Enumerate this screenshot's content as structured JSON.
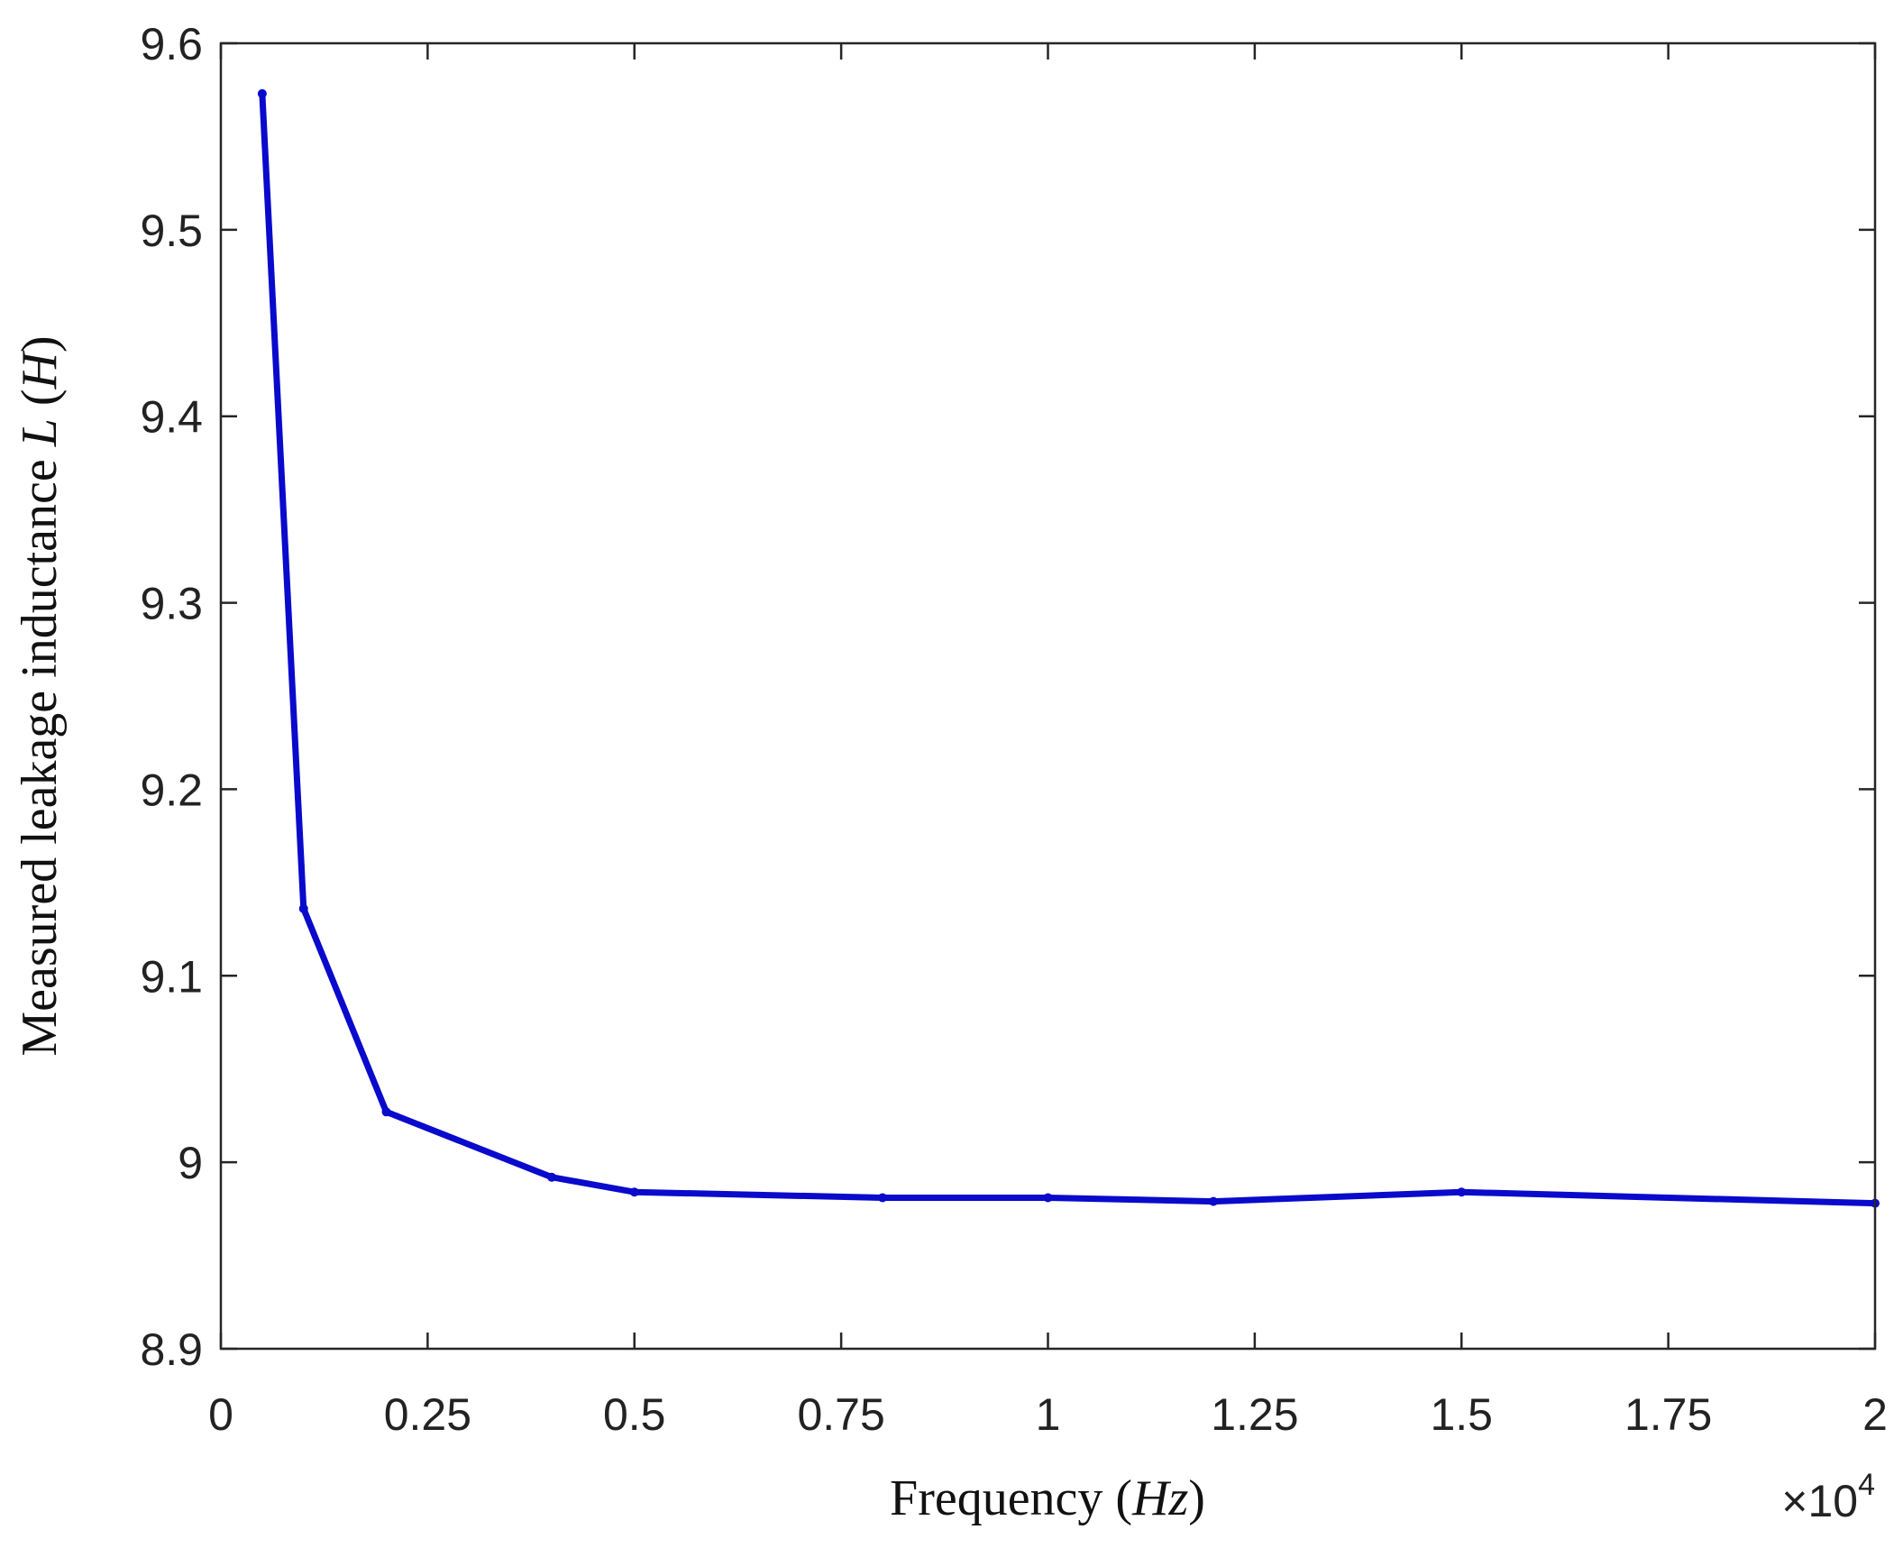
{
  "chart_data": {
    "type": "line",
    "xlabel": {
      "prefix": "Frequency (",
      "italic": "Hz",
      "suffix": ")"
    },
    "ylabel": {
      "prefix": "Measured leakage inductance ",
      "italic1": "L",
      "middle": " (",
      "italic2": "H",
      "suffix": ")"
    },
    "x_multiplier": {
      "base": "×10",
      "exponent": "4"
    },
    "xlim": [
      0,
      2
    ],
    "ylim": [
      8.9,
      9.6
    ],
    "x_ticks": [
      0,
      0.25,
      0.5,
      0.75,
      1,
      1.25,
      1.5,
      1.75,
      2
    ],
    "x_tick_labels": [
      "0",
      "0.25",
      "0.5",
      "0.75",
      "1",
      "1.25",
      "1.5",
      "1.75",
      "2"
    ],
    "y_ticks": [
      8.9,
      9.0,
      9.1,
      9.2,
      9.3,
      9.4,
      9.5,
      9.6
    ],
    "y_tick_labels": [
      "8.9",
      "9",
      "9.1",
      "9.2",
      "9.3",
      "9.4",
      "9.5",
      "9.6"
    ],
    "grid": false,
    "series": [
      {
        "color": "#0a0acc",
        "x": [
          0.05,
          0.1,
          0.2,
          0.4,
          0.5,
          0.8,
          1.0,
          1.2,
          1.5,
          2.0
        ],
        "y": [
          9.573,
          9.136,
          9.027,
          8.992,
          8.984,
          8.981,
          8.981,
          8.979,
          8.984,
          8.978
        ]
      }
    ]
  }
}
